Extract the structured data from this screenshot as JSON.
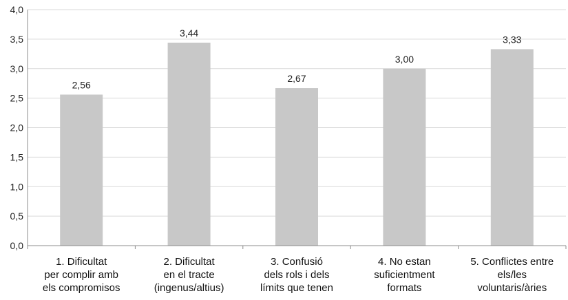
{
  "chart_data": {
    "type": "bar",
    "categories": [
      [
        "1. Dificultat",
        "per complir amb",
        "els compromisos"
      ],
      [
        "2. Dificultat",
        "en el tracte",
        "(ingenus/altius)"
      ],
      [
        "3. Confusió",
        "dels rols i dels",
        "límits que tenen"
      ],
      [
        "4. No estan",
        "suficientment",
        "formats"
      ],
      [
        "5. Conflictes entre",
        "els/les",
        "voluntaris/àries"
      ]
    ],
    "values": [
      2.56,
      3.44,
      2.67,
      3.0,
      3.33
    ],
    "value_labels": [
      "2,56",
      "3,44",
      "2,67",
      "3,00",
      "3,33"
    ],
    "ylim": [
      0,
      4
    ],
    "yticks": [
      "0,0",
      "0,5",
      "1,0",
      "1,5",
      "2,0",
      "2,5",
      "3,0",
      "3,5",
      "4,0"
    ],
    "grid": true,
    "bar_color": "#c8c8c8",
    "grid_color": "#d9d9d9"
  }
}
